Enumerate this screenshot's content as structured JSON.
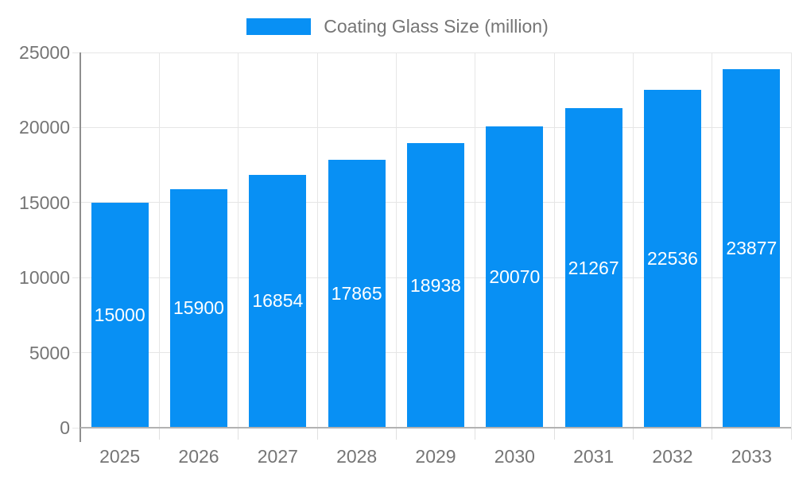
{
  "legend": {
    "label": "Coating Glass Size (million)"
  },
  "chart_data": {
    "type": "bar",
    "title": "Coating Glass Size (million)",
    "categories": [
      "2025",
      "2026",
      "2027",
      "2028",
      "2029",
      "2030",
      "2031",
      "2032",
      "2033"
    ],
    "values": [
      15000,
      15900,
      16854,
      17865,
      18938,
      20070,
      21267,
      22536,
      23877
    ],
    "series": [
      {
        "name": "Coating Glass Size (million)",
        "values": [
          15000,
          15900,
          16854,
          17865,
          18938,
          20070,
          21267,
          22536,
          23877
        ]
      }
    ],
    "xlabel": "",
    "ylabel": "",
    "ylim": [
      0,
      25000
    ],
    "yticks": [
      0,
      5000,
      10000,
      15000,
      20000,
      25000
    ],
    "grid": true,
    "legend_position": "top",
    "bar_labels_inside": true
  },
  "colors": {
    "bar": "#0890f4",
    "bar_label": "#ffffff",
    "grid": "#e6e6e6",
    "axis_y": "#8f8f8f",
    "axis_x": "#b2b2b2",
    "tick": "#e0e0e0",
    "text": "#757575",
    "background": "#ffffff"
  }
}
